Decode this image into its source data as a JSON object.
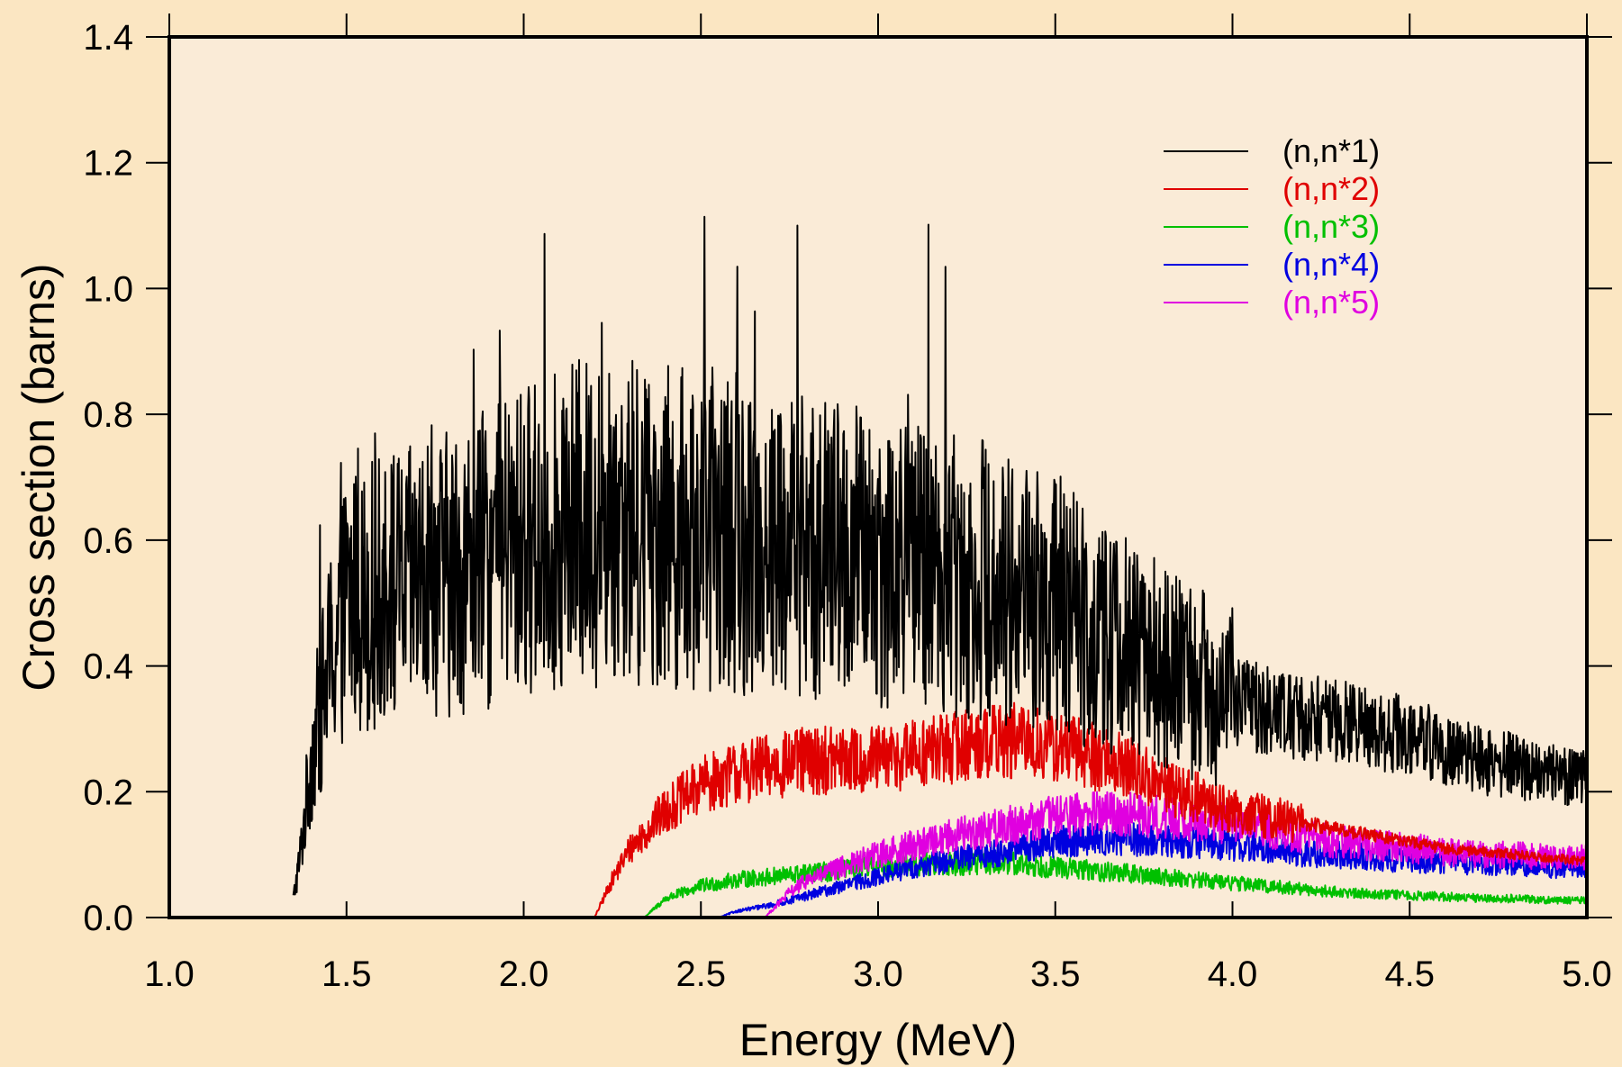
{
  "colors": {
    "page_background": "#fbe6c2",
    "plot_background": "#faebd7"
  },
  "chart_data": {
    "type": "line",
    "title": "",
    "xlabel": "Energy (MeV)",
    "ylabel": "Cross section (barns)",
    "xlim": [
      1.0,
      5.0
    ],
    "ylim": [
      0.0,
      1.4
    ],
    "xticks": [
      1.0,
      1.5,
      2.0,
      2.5,
      3.0,
      3.5,
      4.0,
      4.5,
      5.0
    ],
    "xtick_labels": [
      "1.0",
      "1.5",
      "2.0",
      "2.5",
      "3.0",
      "3.5",
      "4.0",
      "4.5",
      "5.0"
    ],
    "yticks": [
      0.0,
      0.2,
      0.4,
      0.6,
      0.8,
      1.0,
      1.2,
      1.4
    ],
    "ytick_labels": [
      "0.0",
      "0.2",
      "0.4",
      "0.6",
      "0.8",
      "1.0",
      "1.2",
      "1.4"
    ],
    "grid": false,
    "legend_position": "top-right",
    "series": [
      {
        "name": "(n,n*1)",
        "color": "#000000",
        "fluctuating": true,
        "x": [
          1.35,
          1.37,
          1.4,
          1.45,
          1.5,
          1.6,
          1.7,
          1.8,
          1.9,
          2.0,
          2.1,
          2.2,
          2.3,
          2.4,
          2.5,
          2.6,
          2.7,
          2.8,
          2.9,
          3.0,
          3.1,
          3.2,
          3.3,
          3.4,
          3.5,
          3.6,
          3.7,
          3.8,
          3.9,
          4.0,
          4.1,
          4.2,
          4.3,
          4.4,
          4.5,
          4.6,
          4.7,
          4.8,
          4.9,
          5.0
        ],
        "y": [
          0.03,
          0.1,
          0.25,
          0.4,
          0.5,
          0.52,
          0.53,
          0.55,
          0.57,
          0.6,
          0.62,
          0.63,
          0.63,
          0.62,
          0.62,
          0.61,
          0.6,
          0.59,
          0.58,
          0.57,
          0.56,
          0.55,
          0.54,
          0.52,
          0.5,
          0.46,
          0.43,
          0.4,
          0.37,
          0.35,
          0.33,
          0.32,
          0.31,
          0.3,
          0.29,
          0.27,
          0.25,
          0.24,
          0.23,
          0.22
        ]
      },
      {
        "name": "(n,n*2)",
        "color": "#e00000",
        "fluctuating": true,
        "x": [
          2.2,
          2.25,
          2.3,
          2.4,
          2.5,
          2.6,
          2.7,
          2.8,
          2.9,
          3.0,
          3.1,
          3.2,
          3.3,
          3.4,
          3.5,
          3.6,
          3.7,
          3.8,
          3.9,
          4.0,
          4.1,
          4.2,
          4.3,
          4.4,
          4.5,
          4.6,
          4.7,
          4.8,
          4.9,
          5.0
        ],
        "y": [
          0.0,
          0.06,
          0.11,
          0.17,
          0.21,
          0.23,
          0.24,
          0.25,
          0.25,
          0.25,
          0.26,
          0.27,
          0.28,
          0.28,
          0.27,
          0.26,
          0.24,
          0.21,
          0.19,
          0.17,
          0.16,
          0.15,
          0.14,
          0.13,
          0.12,
          0.11,
          0.105,
          0.1,
          0.095,
          0.09
        ]
      },
      {
        "name": "(n,n*3)",
        "color": "#00c000",
        "fluctuating": true,
        "x": [
          2.34,
          2.4,
          2.5,
          2.6,
          2.7,
          2.8,
          2.9,
          3.0,
          3.1,
          3.2,
          3.3,
          3.4,
          3.5,
          3.6,
          3.7,
          3.8,
          3.9,
          4.0,
          4.1,
          4.2,
          4.3,
          4.4,
          4.5,
          4.6,
          4.7,
          4.8,
          4.9,
          5.0
        ],
        "y": [
          0.0,
          0.03,
          0.05,
          0.06,
          0.065,
          0.07,
          0.075,
          0.08,
          0.085,
          0.085,
          0.085,
          0.085,
          0.08,
          0.075,
          0.07,
          0.065,
          0.06,
          0.055,
          0.05,
          0.045,
          0.04,
          0.038,
          0.035,
          0.033,
          0.031,
          0.03,
          0.028,
          0.027
        ]
      },
      {
        "name": "(n,n*4)",
        "color": "#0000e0",
        "fluctuating": true,
        "x": [
          2.55,
          2.6,
          2.7,
          2.8,
          2.9,
          3.0,
          3.1,
          3.2,
          3.3,
          3.4,
          3.5,
          3.6,
          3.7,
          3.8,
          3.9,
          4.0,
          4.1,
          4.2,
          4.3,
          4.4,
          4.5,
          4.6,
          4.7,
          4.8,
          4.9,
          5.0
        ],
        "y": [
          0.0,
          0.01,
          0.02,
          0.035,
          0.05,
          0.065,
          0.08,
          0.09,
          0.1,
          0.11,
          0.12,
          0.125,
          0.125,
          0.12,
          0.12,
          0.115,
          0.11,
          0.1,
          0.1,
          0.095,
          0.09,
          0.09,
          0.085,
          0.085,
          0.08,
          0.08
        ]
      },
      {
        "name": "(n,n*5)",
        "color": "#e000e0",
        "fluctuating": true,
        "x": [
          2.68,
          2.75,
          2.8,
          2.9,
          3.0,
          3.1,
          3.2,
          3.3,
          3.4,
          3.5,
          3.6,
          3.7,
          3.8,
          3.9,
          4.0,
          4.1,
          4.2,
          4.3,
          4.4,
          4.5,
          4.6,
          4.7,
          4.8,
          4.9,
          5.0
        ],
        "y": [
          0.0,
          0.04,
          0.06,
          0.08,
          0.1,
          0.115,
          0.13,
          0.14,
          0.15,
          0.16,
          0.165,
          0.165,
          0.16,
          0.155,
          0.15,
          0.14,
          0.13,
          0.12,
          0.115,
          0.11,
          0.105,
          0.1,
          0.1,
          0.095,
          0.095
        ]
      }
    ]
  }
}
